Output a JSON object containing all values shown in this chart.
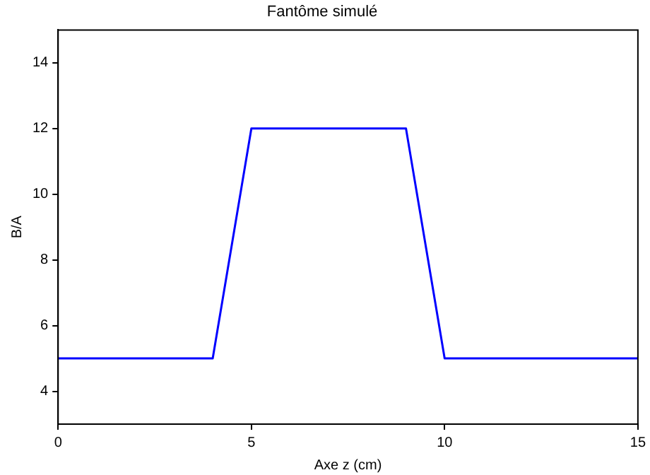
{
  "chart_data": {
    "type": "line",
    "title": "Fantôme simulé",
    "xlabel": "Axe z (cm)",
    "ylabel": "B/A",
    "x": [
      0,
      4,
      5,
      9,
      10,
      15
    ],
    "series": [
      {
        "color": "#0000ff",
        "values": [
          5,
          5,
          12,
          12,
          5,
          5
        ]
      }
    ],
    "xlim": [
      0,
      15
    ],
    "xticks": [
      0,
      5,
      10,
      15
    ],
    "ylim": [
      3,
      15
    ],
    "yticks": [
      4,
      6,
      8,
      10,
      12,
      14
    ],
    "grid": false,
    "legend": false,
    "marker": "none",
    "line_style": "solid"
  }
}
